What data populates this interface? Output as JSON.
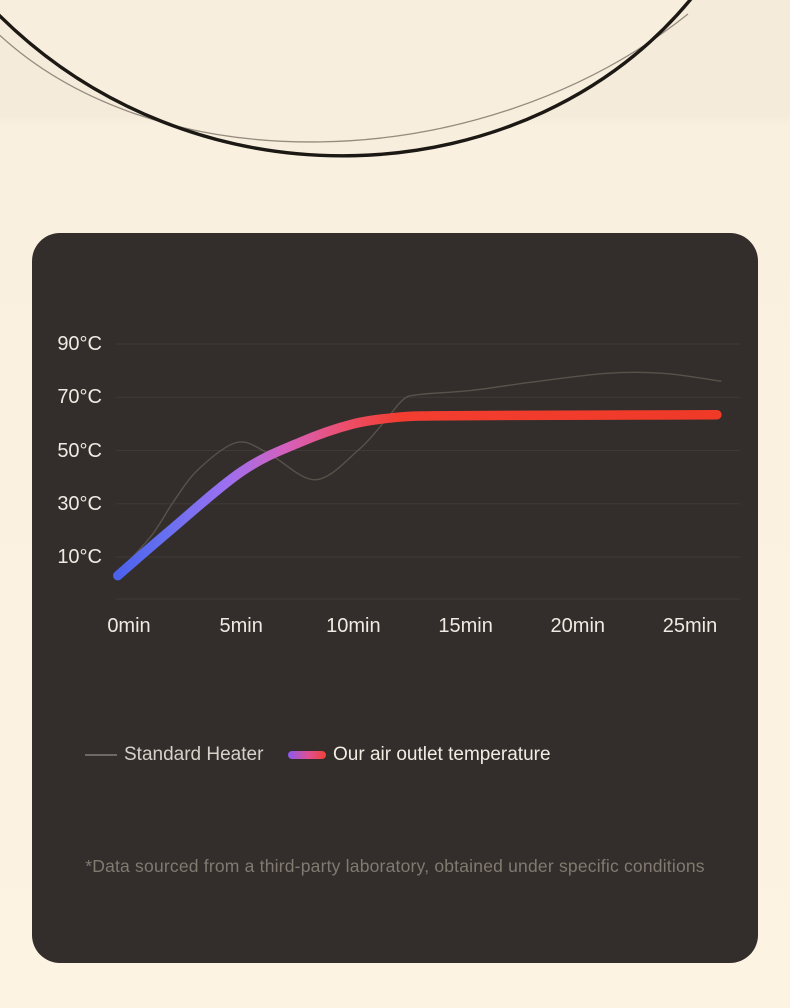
{
  "page": {
    "background_top": "#f5ebdb",
    "background_bottom": "#fdf3e3"
  },
  "card": {
    "background": "#332e2b",
    "grid_color": "#3e3a36",
    "axis_text_color": "#f0eae2"
  },
  "chart_data": {
    "type": "line",
    "title": "",
    "xlabel": "",
    "ylabel": "",
    "x_axis": {
      "unit": "min",
      "ticks": [
        0,
        5,
        10,
        15,
        20,
        25
      ],
      "tick_labels": [
        "0min",
        "5min",
        "10min",
        "15min",
        "20min",
        "25min"
      ],
      "range": [
        0,
        26.5
      ]
    },
    "y_axis": {
      "unit": "°C",
      "ticks": [
        90,
        70,
        50,
        30,
        10
      ],
      "tick_labels": [
        "90°C",
        "70°C",
        "50°C",
        "30°C",
        "10°C"
      ],
      "range": [
        0,
        100
      ]
    },
    "grid": "horizontal-lines",
    "legend_position": "bottom-left",
    "series": [
      {
        "name": "Standard Heater",
        "style": "thin-line",
        "color": "#58524b",
        "stroke_width": 1.4,
        "points_min_degC": [
          [
            -0.4,
            5
          ],
          [
            1,
            18
          ],
          [
            2,
            31
          ],
          [
            3.1,
            43
          ],
          [
            4.8,
            53
          ],
          [
            6.2,
            49
          ],
          [
            8.3,
            39
          ],
          [
            10.2,
            50
          ],
          [
            11.4,
            61
          ],
          [
            12.2,
            69
          ],
          [
            12.9,
            71
          ],
          [
            15.2,
            72.5
          ],
          [
            17.8,
            75.5
          ],
          [
            21.3,
            79
          ],
          [
            23.8,
            79
          ],
          [
            26.4,
            76
          ]
        ]
      },
      {
        "name": "Our air outlet temperature",
        "style": "thick-gradient-line",
        "stroke_width": 9.5,
        "gradient_stops": [
          {
            "offset": 0.0,
            "color": "#4c62ed"
          },
          {
            "offset": 0.08,
            "color": "#6770f1"
          },
          {
            "offset": 0.18,
            "color": "#9b70f1"
          },
          {
            "offset": 0.28,
            "color": "#d560bd"
          },
          {
            "offset": 0.38,
            "color": "#ec4e6b"
          },
          {
            "offset": 0.47,
            "color": "#f23d30"
          },
          {
            "offset": 1.0,
            "color": "#f03a28"
          }
        ],
        "points_min_degC": [
          [
            -0.5,
            3
          ],
          [
            1.7,
            19
          ],
          [
            5,
            42
          ],
          [
            7.6,
            53
          ],
          [
            10,
            60
          ],
          [
            12,
            62.5
          ],
          [
            13.5,
            63
          ],
          [
            17,
            63.2
          ],
          [
            21,
            63.3
          ],
          [
            26.2,
            63.4
          ]
        ]
      }
    ]
  },
  "footnote": "*Data sourced from a third-party laboratory, obtained under specific conditions"
}
